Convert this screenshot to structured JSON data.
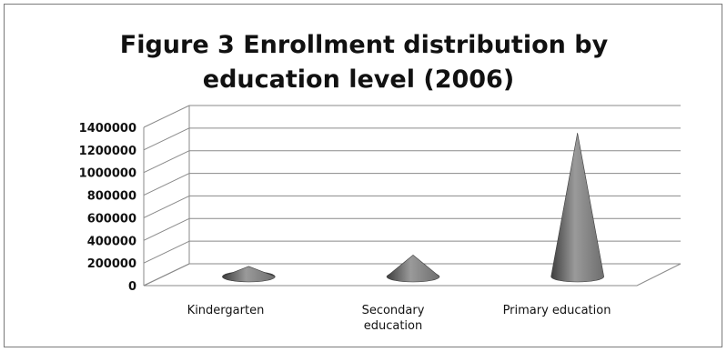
{
  "chart_data": {
    "type": "bar",
    "bar_shape": "cone",
    "style": "3d",
    "title_lines": [
      "Figure 3 Enrollment distribution by",
      "education level (2006)"
    ],
    "categories": [
      [
        "Kindergarten"
      ],
      [
        "Secondary",
        "education"
      ],
      [
        "Primary education"
      ]
    ],
    "values": [
      90000,
      190000,
      1270000
    ],
    "ylim": [
      0,
      1400000
    ],
    "yticks": [
      0,
      200000,
      400000,
      600000,
      800000,
      1000000,
      1200000,
      1400000
    ],
    "xlabel": "",
    "ylabel": "",
    "grid": true,
    "legend": false,
    "colors": {
      "cone": "#6e6e6e",
      "cone_light": "#9a9a9a",
      "cone_dark": "#3e3e3e",
      "grid": "#8a8a8a",
      "frame": "#7a7a7a"
    }
  }
}
